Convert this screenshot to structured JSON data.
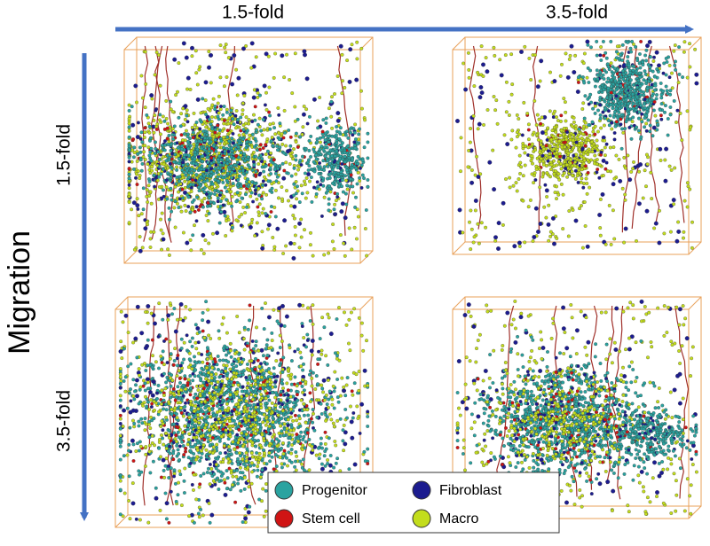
{
  "header": {
    "columns": [
      "1.5-fold",
      "3.5-fold"
    ]
  },
  "side": {
    "title": "Migration",
    "rows": [
      "1.5-fold",
      "3.5-fold"
    ]
  },
  "legend": [
    {
      "label": "Progenitor",
      "color": "#2aa3a0"
    },
    {
      "label": "Fibroblast",
      "color": "#1c1c8f"
    },
    {
      "label": "Stem cell",
      "color": "#d01414"
    },
    {
      "label": "Macro",
      "color": "#c3dd1c"
    }
  ]
}
